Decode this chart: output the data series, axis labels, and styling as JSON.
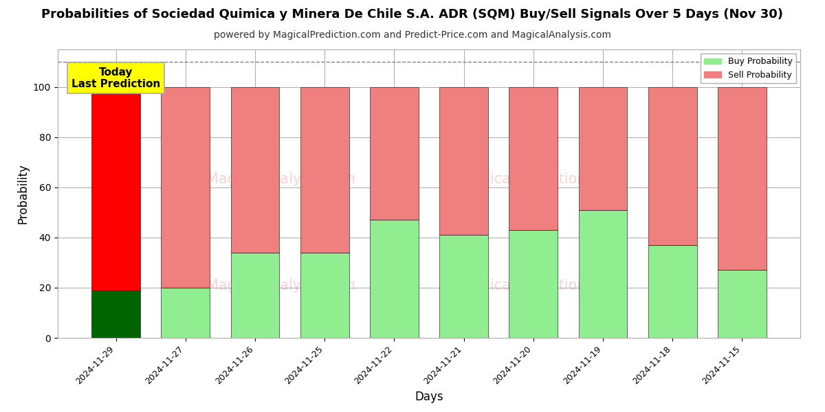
{
  "title": "Probabilities of Sociedad Quimica y Minera De Chile S.A. ADR (SQM) Buy/Sell Signals Over 5 Days (Nov 30)",
  "subtitle": "powered by MagicalPrediction.com and Predict-Price.com and MagicalAnalysis.com",
  "xlabel": "Days",
  "ylabel": "Probability",
  "categories": [
    "2024-11-29",
    "2024-11-27",
    "2024-11-26",
    "2024-11-25",
    "2024-11-22",
    "2024-11-21",
    "2024-11-20",
    "2024-11-19",
    "2024-11-18",
    "2024-11-15"
  ],
  "buy_values": [
    19,
    20,
    34,
    34,
    47,
    41,
    43,
    51,
    37,
    27
  ],
  "sell_values": [
    81,
    80,
    66,
    66,
    53,
    59,
    57,
    49,
    63,
    73
  ],
  "today_bar_buy_color": "#006400",
  "today_bar_sell_color": "#FF0000",
  "other_bar_buy_color": "#90EE90",
  "other_bar_sell_color": "#F08080",
  "today_annotation_text": "Today\nLast Prediction",
  "today_annotation_bg": "#FFFF00",
  "today_annotation_border": "#AAAAAA",
  "legend_buy_label": "Buy Probability",
  "legend_sell_label": "Sell Probability",
  "ylim": [
    0,
    115
  ],
  "yticks": [
    0,
    20,
    40,
    60,
    80,
    100
  ],
  "dashed_line_y": 110,
  "bg_color": "#ffffff",
  "grid_color": "#aaaaaa",
  "title_fontsize": 13,
  "subtitle_fontsize": 10,
  "bar_width": 0.7
}
